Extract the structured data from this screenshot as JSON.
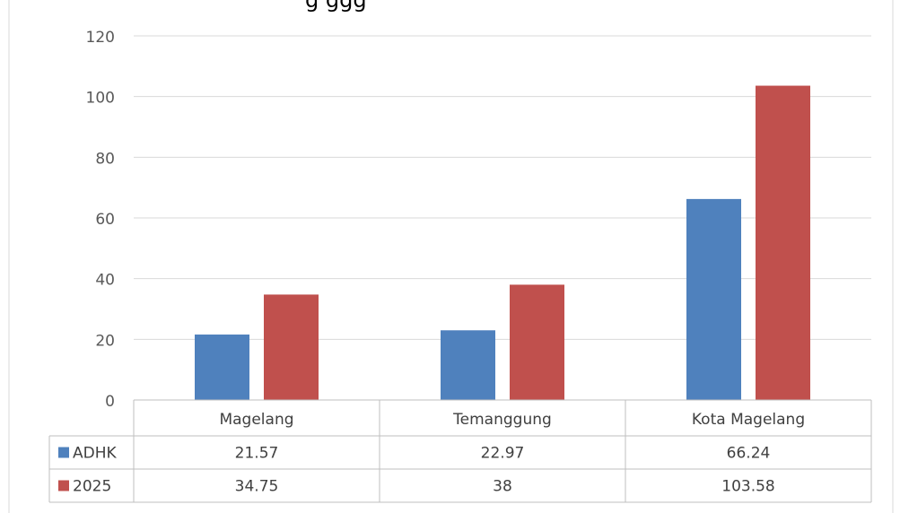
{
  "chart_data": {
    "type": "bar",
    "title": "",
    "title_fragment": "g  ggg",
    "categories": [
      "Magelang",
      "Temanggung",
      "Kota Magelang"
    ],
    "series": [
      {
        "name": "ADHK",
        "color": "#4F81BD",
        "values": [
          21.57,
          22.97,
          66.24
        ]
      },
      {
        "name": "2025",
        "color": "#C0504D",
        "values": [
          34.75,
          38,
          103.58
        ]
      }
    ],
    "value_labels": [
      [
        "21.57",
        "22.97",
        "66.24"
      ],
      [
        "34.75",
        "38",
        "103.58"
      ]
    ],
    "ylim": [
      0,
      120
    ],
    "yticks": [
      0,
      20,
      40,
      60,
      80,
      100,
      120
    ],
    "grid": true,
    "legend": "data-table",
    "xlabel": "",
    "ylabel": ""
  }
}
